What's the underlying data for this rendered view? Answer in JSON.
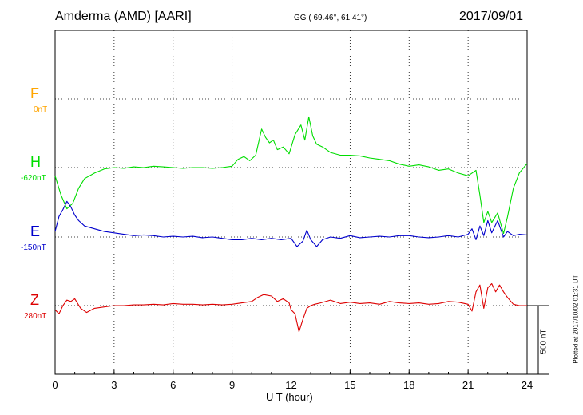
{
  "header": {
    "station": "Amderma (AMD)  [AARI]",
    "coords": "GG ( 69.46°,  61.41°)",
    "date": "2017/09/01"
  },
  "plotted_note": "Plotted at 2017/10/02 01:31  UT",
  "scale_label": "500 nT",
  "colors": {
    "F": "#ffa500",
    "H": "#00dd00",
    "E": "#0000cc",
    "Z": "#dd0000",
    "grid": "#000000"
  },
  "chart_data": {
    "type": "line",
    "xlabel": "U T (hour)",
    "xlim": [
      0,
      24
    ],
    "x_ticks": [
      "0",
      "3",
      "6",
      "9",
      "12",
      "15",
      "18",
      "21",
      "24"
    ],
    "scale_nT_per_bar": 500,
    "series": [
      {
        "name": "F",
        "baseline_label": "0nT",
        "color": "#ffa500",
        "x": [],
        "y": []
      },
      {
        "name": "H",
        "baseline_label": "-620nT",
        "color": "#00dd00",
        "x": [
          0,
          0.3,
          0.6,
          0.9,
          1.2,
          1.5,
          2,
          2.5,
          3,
          3.5,
          4,
          4.5,
          5,
          5.5,
          6,
          6.5,
          7,
          7.5,
          8,
          8.5,
          9,
          9.3,
          9.6,
          9.9,
          10.2,
          10.5,
          10.7,
          10.9,
          11.1,
          11.3,
          11.6,
          11.9,
          12.2,
          12.5,
          12.7,
          12.9,
          13.1,
          13.3,
          13.6,
          14,
          14.5,
          15,
          15.5,
          16,
          16.5,
          17,
          17.5,
          18,
          18.5,
          19,
          19.5,
          20,
          20.5,
          21,
          21.2,
          21.4,
          21.6,
          21.8,
          22,
          22.2,
          22.5,
          22.8,
          23,
          23.3,
          23.6,
          24
        ],
        "y": [
          -60,
          -200,
          -300,
          -260,
          -150,
          -80,
          -40,
          -10,
          0,
          -5,
          5,
          0,
          10,
          5,
          0,
          -5,
          0,
          0,
          -5,
          0,
          10,
          60,
          80,
          50,
          90,
          280,
          220,
          180,
          200,
          130,
          150,
          100,
          240,
          310,
          200,
          370,
          230,
          170,
          150,
          110,
          90,
          90,
          85,
          70,
          60,
          50,
          25,
          10,
          20,
          5,
          -20,
          -10,
          -40,
          -60,
          -40,
          -20,
          -200,
          -400,
          -320,
          -400,
          -330,
          -480,
          -360,
          -150,
          -40,
          30
        ]
      },
      {
        "name": "E",
        "baseline_label": "-150nT",
        "color": "#0000cc",
        "x": [
          0,
          0.2,
          0.4,
          0.6,
          0.8,
          1,
          1.2,
          1.5,
          2,
          2.5,
          3,
          3.5,
          4,
          4.5,
          5,
          5.5,
          6,
          6.5,
          7,
          7.5,
          8,
          8.5,
          9,
          9.5,
          10,
          10.5,
          11,
          11.5,
          12,
          12.3,
          12.6,
          12.8,
          13,
          13.3,
          13.6,
          14,
          14.5,
          15,
          15.5,
          16,
          16.5,
          17,
          17.5,
          18,
          18.5,
          19,
          19.5,
          20,
          20.5,
          21,
          21.2,
          21.4,
          21.6,
          21.8,
          22,
          22.2,
          22.5,
          22.8,
          23,
          23.3,
          23.6,
          24
        ],
        "y": [
          40,
          150,
          200,
          260,
          220,
          160,
          120,
          80,
          60,
          40,
          30,
          20,
          10,
          15,
          10,
          0,
          5,
          0,
          5,
          -5,
          0,
          -10,
          -20,
          -20,
          -10,
          -20,
          -10,
          -20,
          -10,
          -70,
          -30,
          50,
          -20,
          -70,
          -20,
          0,
          -10,
          10,
          -5,
          0,
          5,
          0,
          10,
          10,
          0,
          -5,
          0,
          10,
          0,
          20,
          60,
          -20,
          80,
          10,
          120,
          30,
          120,
          0,
          40,
          10,
          20,
          15
        ]
      },
      {
        "name": "Z",
        "baseline_label": "280nT",
        "color": "#dd0000",
        "x": [
          0,
          0.2,
          0.4,
          0.6,
          0.8,
          1,
          1.3,
          1.6,
          2,
          2.5,
          3,
          3.5,
          4,
          4.5,
          5,
          5.5,
          6,
          6.5,
          7,
          7.5,
          8,
          8.5,
          9,
          9.5,
          10,
          10.3,
          10.6,
          11,
          11.3,
          11.6,
          11.9,
          12,
          12.2,
          12.4,
          12.6,
          12.8,
          13,
          13.2,
          13.5,
          14,
          14.5,
          15,
          15.5,
          16,
          16.5,
          17,
          17.5,
          18,
          18.5,
          19,
          19.5,
          20,
          20.5,
          21,
          21.2,
          21.4,
          21.6,
          21.8,
          22,
          22.2,
          22.4,
          22.6,
          22.8,
          23,
          23.3,
          23.6,
          24
        ],
        "y": [
          -30,
          -60,
          0,
          40,
          30,
          50,
          -20,
          -50,
          -20,
          -10,
          0,
          0,
          5,
          5,
          10,
          5,
          15,
          10,
          10,
          5,
          10,
          5,
          10,
          20,
          30,
          60,
          80,
          70,
          30,
          50,
          20,
          -30,
          -60,
          -190,
          -100,
          -20,
          0,
          10,
          20,
          40,
          15,
          25,
          15,
          20,
          10,
          30,
          20,
          15,
          20,
          10,
          15,
          30,
          25,
          10,
          -40,
          100,
          150,
          -20,
          130,
          160,
          100,
          150,
          100,
          60,
          10,
          0,
          0
        ]
      }
    ]
  }
}
